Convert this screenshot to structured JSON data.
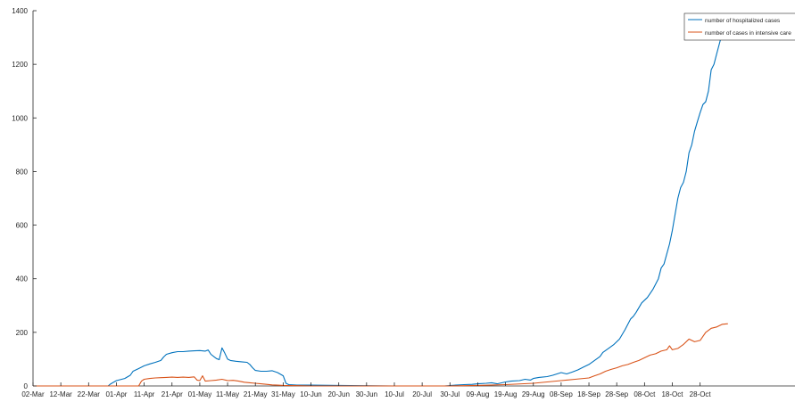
{
  "chart_data": {
    "type": "line",
    "title": "",
    "xlabel": "",
    "ylabel": "",
    "x_tick_labels": [
      "02-Mar",
      "12-Mar",
      "22-Mar",
      "01-Apr",
      "11-Apr",
      "21-Apr",
      "01-May",
      "11-May",
      "21-May",
      "31-May",
      "10-Jun",
      "20-Jun",
      "30-Jun",
      "10-Jul",
      "20-Jul",
      "30-Jul",
      "09-Aug",
      "19-Aug",
      "29-Aug",
      "08-Sep",
      "18-Sep",
      "28-Sep",
      "08-Oct",
      "18-Oct",
      "28-Oct"
    ],
    "xlim_days": [
      0,
      243
    ],
    "ylim": [
      0,
      1400
    ],
    "y_ticks": [
      0,
      200,
      400,
      600,
      800,
      1000,
      1200,
      1400
    ],
    "grid": false,
    "legend_position": "top-right",
    "series": [
      {
        "name": "number of hospitalized cases",
        "color": "#0072bd",
        "points": [
          [
            0,
            0
          ],
          [
            27,
            0
          ],
          [
            28,
            8
          ],
          [
            30,
            20
          ],
          [
            33,
            28
          ],
          [
            35,
            40
          ],
          [
            36,
            55
          ],
          [
            38,
            65
          ],
          [
            40,
            75
          ],
          [
            42,
            82
          ],
          [
            44,
            88
          ],
          [
            46,
            95
          ],
          [
            47,
            108
          ],
          [
            48,
            118
          ],
          [
            50,
            124
          ],
          [
            52,
            128
          ],
          [
            54,
            128
          ],
          [
            56,
            130
          ],
          [
            58,
            131
          ],
          [
            60,
            132
          ],
          [
            62,
            130
          ],
          [
            63,
            134
          ],
          [
            64,
            118
          ],
          [
            65,
            110
          ],
          [
            66,
            102
          ],
          [
            67,
            98
          ],
          [
            68,
            142
          ],
          [
            69,
            122
          ],
          [
            70,
            100
          ],
          [
            71,
            95
          ],
          [
            73,
            92
          ],
          [
            75,
            90
          ],
          [
            77,
            88
          ],
          [
            78,
            80
          ],
          [
            79,
            68
          ],
          [
            80,
            58
          ],
          [
            82,
            55
          ],
          [
            84,
            55
          ],
          [
            86,
            57
          ],
          [
            88,
            50
          ],
          [
            90,
            38
          ],
          [
            91,
            10
          ],
          [
            92,
            5
          ],
          [
            95,
            3
          ],
          [
            100,
            3
          ],
          [
            110,
            2
          ],
          [
            118,
            1
          ],
          [
            130,
            0
          ],
          [
            140,
            0
          ],
          [
            148,
            0
          ],
          [
            152,
            3
          ],
          [
            155,
            5
          ],
          [
            158,
            6
          ],
          [
            160,
            8
          ],
          [
            163,
            10
          ],
          [
            165,
            12
          ],
          [
            167,
            8
          ],
          [
            170,
            15
          ],
          [
            172,
            18
          ],
          [
            175,
            20
          ],
          [
            177,
            25
          ],
          [
            179,
            22
          ],
          [
            180,
            28
          ],
          [
            182,
            32
          ],
          [
            185,
            35
          ],
          [
            187,
            40
          ],
          [
            190,
            50
          ],
          [
            192,
            45
          ],
          [
            194,
            52
          ],
          [
            196,
            60
          ],
          [
            198,
            70
          ],
          [
            200,
            80
          ],
          [
            202,
            95
          ],
          [
            204,
            110
          ],
          [
            205,
            125
          ],
          [
            207,
            140
          ],
          [
            209,
            155
          ],
          [
            211,
            175
          ],
          [
            213,
            210
          ],
          [
            215,
            250
          ],
          [
            216,
            260
          ],
          [
            217,
            275
          ],
          [
            219,
            310
          ],
          [
            221,
            330
          ],
          [
            222,
            345
          ],
          [
            223,
            360
          ],
          [
            225,
            400
          ],
          [
            226,
            440
          ],
          [
            227,
            455
          ],
          [
            229,
            530
          ],
          [
            230,
            580
          ],
          [
            231,
            640
          ],
          [
            232,
            700
          ],
          [
            233,
            740
          ],
          [
            234,
            760
          ],
          [
            235,
            800
          ],
          [
            236,
            870
          ],
          [
            237,
            900
          ],
          [
            238,
            950
          ],
          [
            239,
            985
          ],
          [
            240,
            1020
          ],
          [
            241,
            1050
          ],
          [
            242,
            1060
          ],
          [
            243,
            1100
          ],
          [
            244,
            1180
          ],
          [
            245,
            1200
          ],
          [
            246,
            1240
          ],
          [
            247,
            1280
          ],
          [
            248,
            1320
          ],
          [
            249,
            1360
          ]
        ]
      },
      {
        "name": "number of cases in intensive care",
        "color": "#d95319",
        "points": [
          [
            0,
            0
          ],
          [
            38,
            0
          ],
          [
            39,
            18
          ],
          [
            40,
            25
          ],
          [
            42,
            28
          ],
          [
            44,
            30
          ],
          [
            46,
            31
          ],
          [
            48,
            32
          ],
          [
            50,
            33
          ],
          [
            52,
            32
          ],
          [
            54,
            33
          ],
          [
            56,
            32
          ],
          [
            58,
            34
          ],
          [
            59,
            22
          ],
          [
            60,
            20
          ],
          [
            61,
            38
          ],
          [
            62,
            18
          ],
          [
            64,
            20
          ],
          [
            66,
            22
          ],
          [
            68,
            25
          ],
          [
            70,
            20
          ],
          [
            72,
            21
          ],
          [
            74,
            18
          ],
          [
            76,
            14
          ],
          [
            78,
            12
          ],
          [
            80,
            10
          ],
          [
            82,
            8
          ],
          [
            84,
            6
          ],
          [
            86,
            4
          ],
          [
            88,
            3
          ],
          [
            90,
            2
          ],
          [
            95,
            1
          ],
          [
            100,
            0
          ],
          [
            150,
            0
          ],
          [
            160,
            2
          ],
          [
            170,
            5
          ],
          [
            180,
            10
          ],
          [
            185,
            15
          ],
          [
            190,
            20
          ],
          [
            195,
            25
          ],
          [
            200,
            30
          ],
          [
            202,
            38
          ],
          [
            204,
            45
          ],
          [
            206,
            55
          ],
          [
            208,
            62
          ],
          [
            210,
            68
          ],
          [
            212,
            75
          ],
          [
            214,
            80
          ],
          [
            216,
            88
          ],
          [
            218,
            95
          ],
          [
            220,
            105
          ],
          [
            222,
            115
          ],
          [
            224,
            120
          ],
          [
            226,
            130
          ],
          [
            228,
            135
          ],
          [
            229,
            150
          ],
          [
            230,
            135
          ],
          [
            232,
            140
          ],
          [
            234,
            155
          ],
          [
            236,
            175
          ],
          [
            238,
            165
          ],
          [
            240,
            170
          ],
          [
            242,
            200
          ],
          [
            244,
            215
          ],
          [
            246,
            220
          ],
          [
            248,
            230
          ],
          [
            250,
            232
          ]
        ]
      }
    ]
  }
}
